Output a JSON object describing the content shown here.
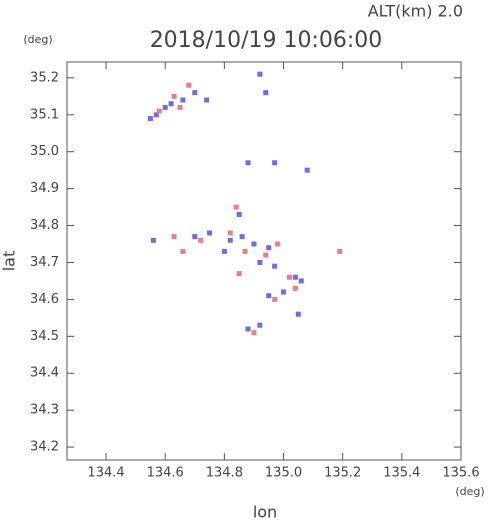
{
  "chart_data": {
    "type": "scatter",
    "title": "2018/10/19 10:06:00",
    "subtitle": "ALT(km) 2.0",
    "x_label": "lon",
    "y_label": "lat",
    "x_unit": "(deg)",
    "y_unit": "(deg)",
    "xlim": [
      134.268,
      135.6
    ],
    "ylim": [
      34.165,
      35.243
    ],
    "xticks": [
      134.4,
      134.6,
      134.8,
      {
        "value": 135,
        "label": "135.0"
      },
      135.2,
      135.4,
      135.6
    ],
    "yticks": [
      34.2,
      34.3,
      34.4,
      34.5,
      34.6,
      34.7,
      34.8,
      34.9,
      {
        "value": 35,
        "label": "35.0"
      },
      35.1,
      35.2
    ],
    "series": [
      {
        "color": "#6b6bf2",
        "x": [
          134.55,
          134.57,
          134.6,
          134.62,
          134.66,
          134.7,
          134.74,
          134.92,
          134.88,
          134.97,
          135.08,
          134.85,
          134.86,
          134.82,
          134.9,
          134.95,
          134.92,
          134.97,
          135.04,
          135.06,
          134.95,
          135.0,
          134.88,
          134.92,
          134.56,
          134.7,
          134.75,
          135.05,
          134.8,
          134.94
        ],
        "values": [
          35.09,
          35.1,
          35.12,
          35.13,
          35.14,
          35.16,
          35.14,
          35.21,
          34.97,
          34.97,
          34.95,
          34.83,
          34.77,
          34.76,
          34.75,
          34.74,
          34.7,
          34.69,
          34.66,
          34.65,
          34.61,
          34.62,
          34.52,
          34.53,
          34.76,
          34.77,
          34.78,
          34.56,
          34.73,
          35.16
        ]
      },
      {
        "color": "#f27a86",
        "x": [
          134.63,
          134.68,
          134.58,
          134.65,
          134.84,
          134.63,
          134.66,
          134.87,
          134.82,
          134.98,
          135.02,
          134.97,
          135.19,
          134.9,
          134.85,
          134.94,
          135.04,
          134.72
        ],
        "values": [
          35.15,
          35.18,
          35.11,
          35.12,
          34.85,
          34.77,
          34.73,
          34.73,
          34.78,
          34.75,
          34.66,
          34.6,
          34.73,
          34.51,
          34.67,
          34.72,
          34.63,
          34.76
        ]
      }
    ]
  }
}
